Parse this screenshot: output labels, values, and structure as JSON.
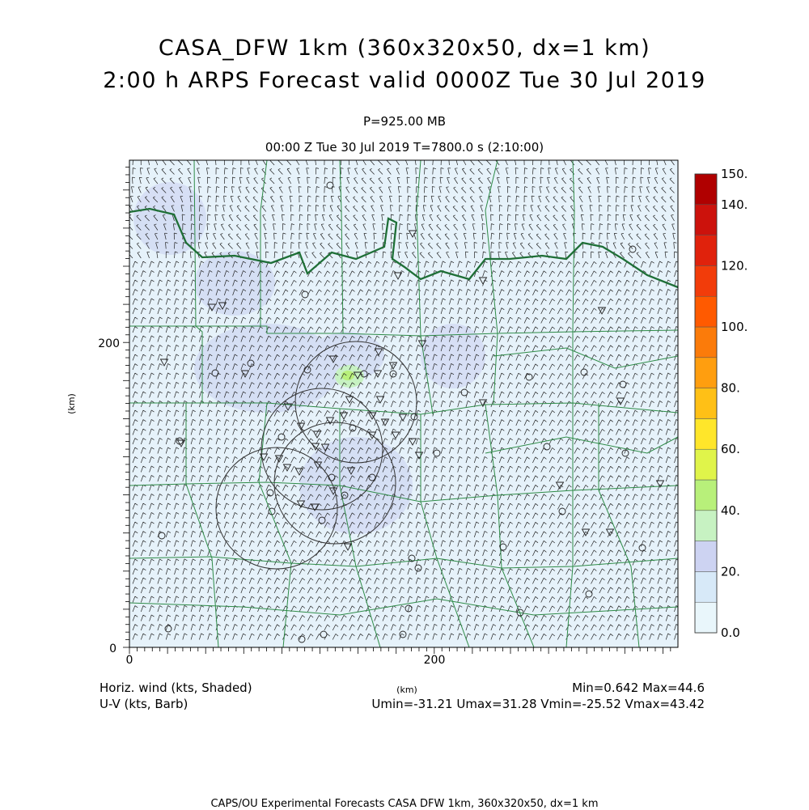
{
  "title": {
    "line1": "CASA_DFW 1km (360x320x50, dx=1 km)",
    "line2": "2:00 h ARPS Forecast valid 0000Z Tue 30 Jul 2019"
  },
  "level": "P=925.00 MB",
  "time_line": "00:00 Z Tue 30 Jul 2019    T=7800.0 s (2:10:00)",
  "axes": {
    "x_ticks": [
      "0",
      "200"
    ],
    "y_ticks": [
      "0",
      "200"
    ],
    "x_label": "(km)",
    "y_label": "(km)",
    "x_range_km": [
      0,
      360
    ],
    "y_range_km": [
      0,
      320
    ]
  },
  "colorbar": {
    "labels": [
      "150.",
      "140.",
      "120.",
      "100.",
      "80.",
      "60.",
      "40.",
      "20.",
      "0.0"
    ],
    "levels": [
      0,
      10,
      20,
      30,
      40,
      50,
      60,
      70,
      80,
      90,
      100,
      110,
      120,
      130,
      140,
      150
    ],
    "colors": [
      "#e9f6fb",
      "#d7e9f8",
      "#cdd3f2",
      "#c7f2c2",
      "#b8f07a",
      "#e0f44a",
      "#ffe62a",
      "#ffc016",
      "#ff9e0f",
      "#fb7b0a",
      "#ff5a00",
      "#f23c0a",
      "#e0220c",
      "#cc120c",
      "#b00000"
    ]
  },
  "footer": {
    "left1": "Horiz. wind (kts, Shaded)",
    "left2": "U-V (kts, Barb)",
    "right1": "Min=0.642 Max=44.6",
    "right2": "Umin=-31.21 Umax=31.28 Vmin=-25.52 Vmax=43.42"
  },
  "credit": "CAPS/OU Experimental Forecasts  CASA DFW 1km, 360x320x50, dx=1 km"
}
